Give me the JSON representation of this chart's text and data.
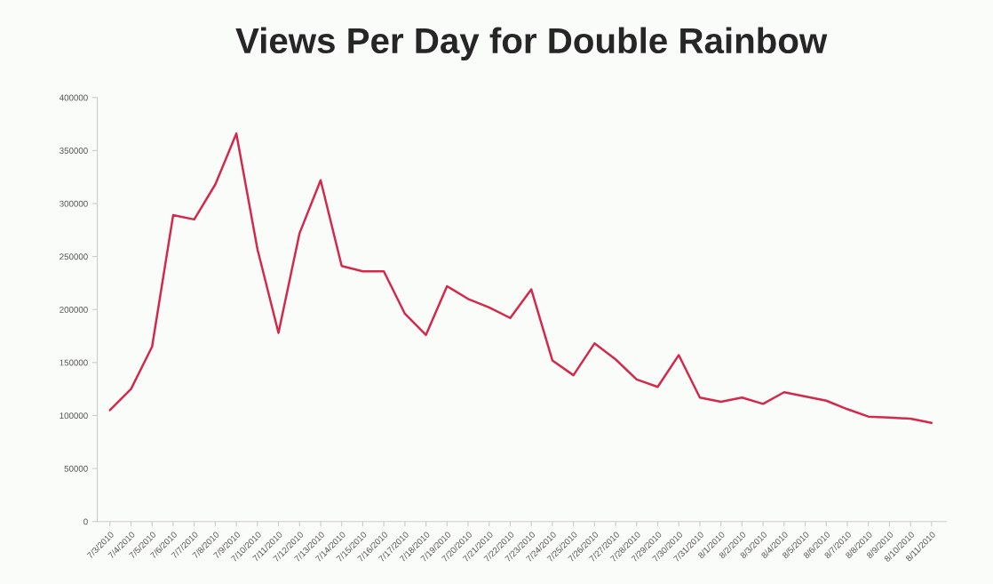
{
  "chart_data": {
    "type": "line",
    "title": "Views Per Day for Double Rainbow",
    "categories": [
      "7/3/2010",
      "7/4/2010",
      "7/5/2010",
      "7/6/2010",
      "7/7/2010",
      "7/8/2010",
      "7/9/2010",
      "7/10/2010",
      "7/11/2010",
      "7/12/2010",
      "7/13/2010",
      "7/14/2010",
      "7/15/2010",
      "7/16/2010",
      "7/17/2010",
      "7/18/2010",
      "7/19/2010",
      "7/20/2010",
      "7/21/2010",
      "7/22/2010",
      "7/23/2010",
      "7/24/2010",
      "7/25/2010",
      "7/26/2010",
      "7/27/2010",
      "7/28/2010",
      "7/29/2010",
      "7/30/2010",
      "7/31/2010",
      "8/1/2010",
      "8/2/2010",
      "8/3/2010",
      "8/4/2010",
      "8/5/2010",
      "8/6/2010",
      "8/7/2010",
      "8/8/2010",
      "8/9/2010",
      "8/10/2010",
      "8/11/2010"
    ],
    "series": [
      {
        "color": "#d2294c",
        "values": [
          105000,
          125000,
          165000,
          289000,
          285000,
          318000,
          366000,
          257000,
          178000,
          272000,
          322000,
          241000,
          236000,
          236000,
          196000,
          176000,
          222000,
          210000,
          202000,
          192000,
          219000,
          152000,
          138000,
          168000,
          153000,
          134000,
          127000,
          157000,
          117000,
          113000,
          117000,
          111000,
          122000,
          118000,
          114000,
          106000,
          99000,
          98000,
          97000,
          93000
        ]
      }
    ],
    "ylim": [
      0,
      400000
    ],
    "yticks": [
      0,
      50000,
      100000,
      150000,
      200000,
      250000,
      300000,
      350000,
      400000
    ],
    "grid": false,
    "marker": "none",
    "line_style": "solid"
  }
}
